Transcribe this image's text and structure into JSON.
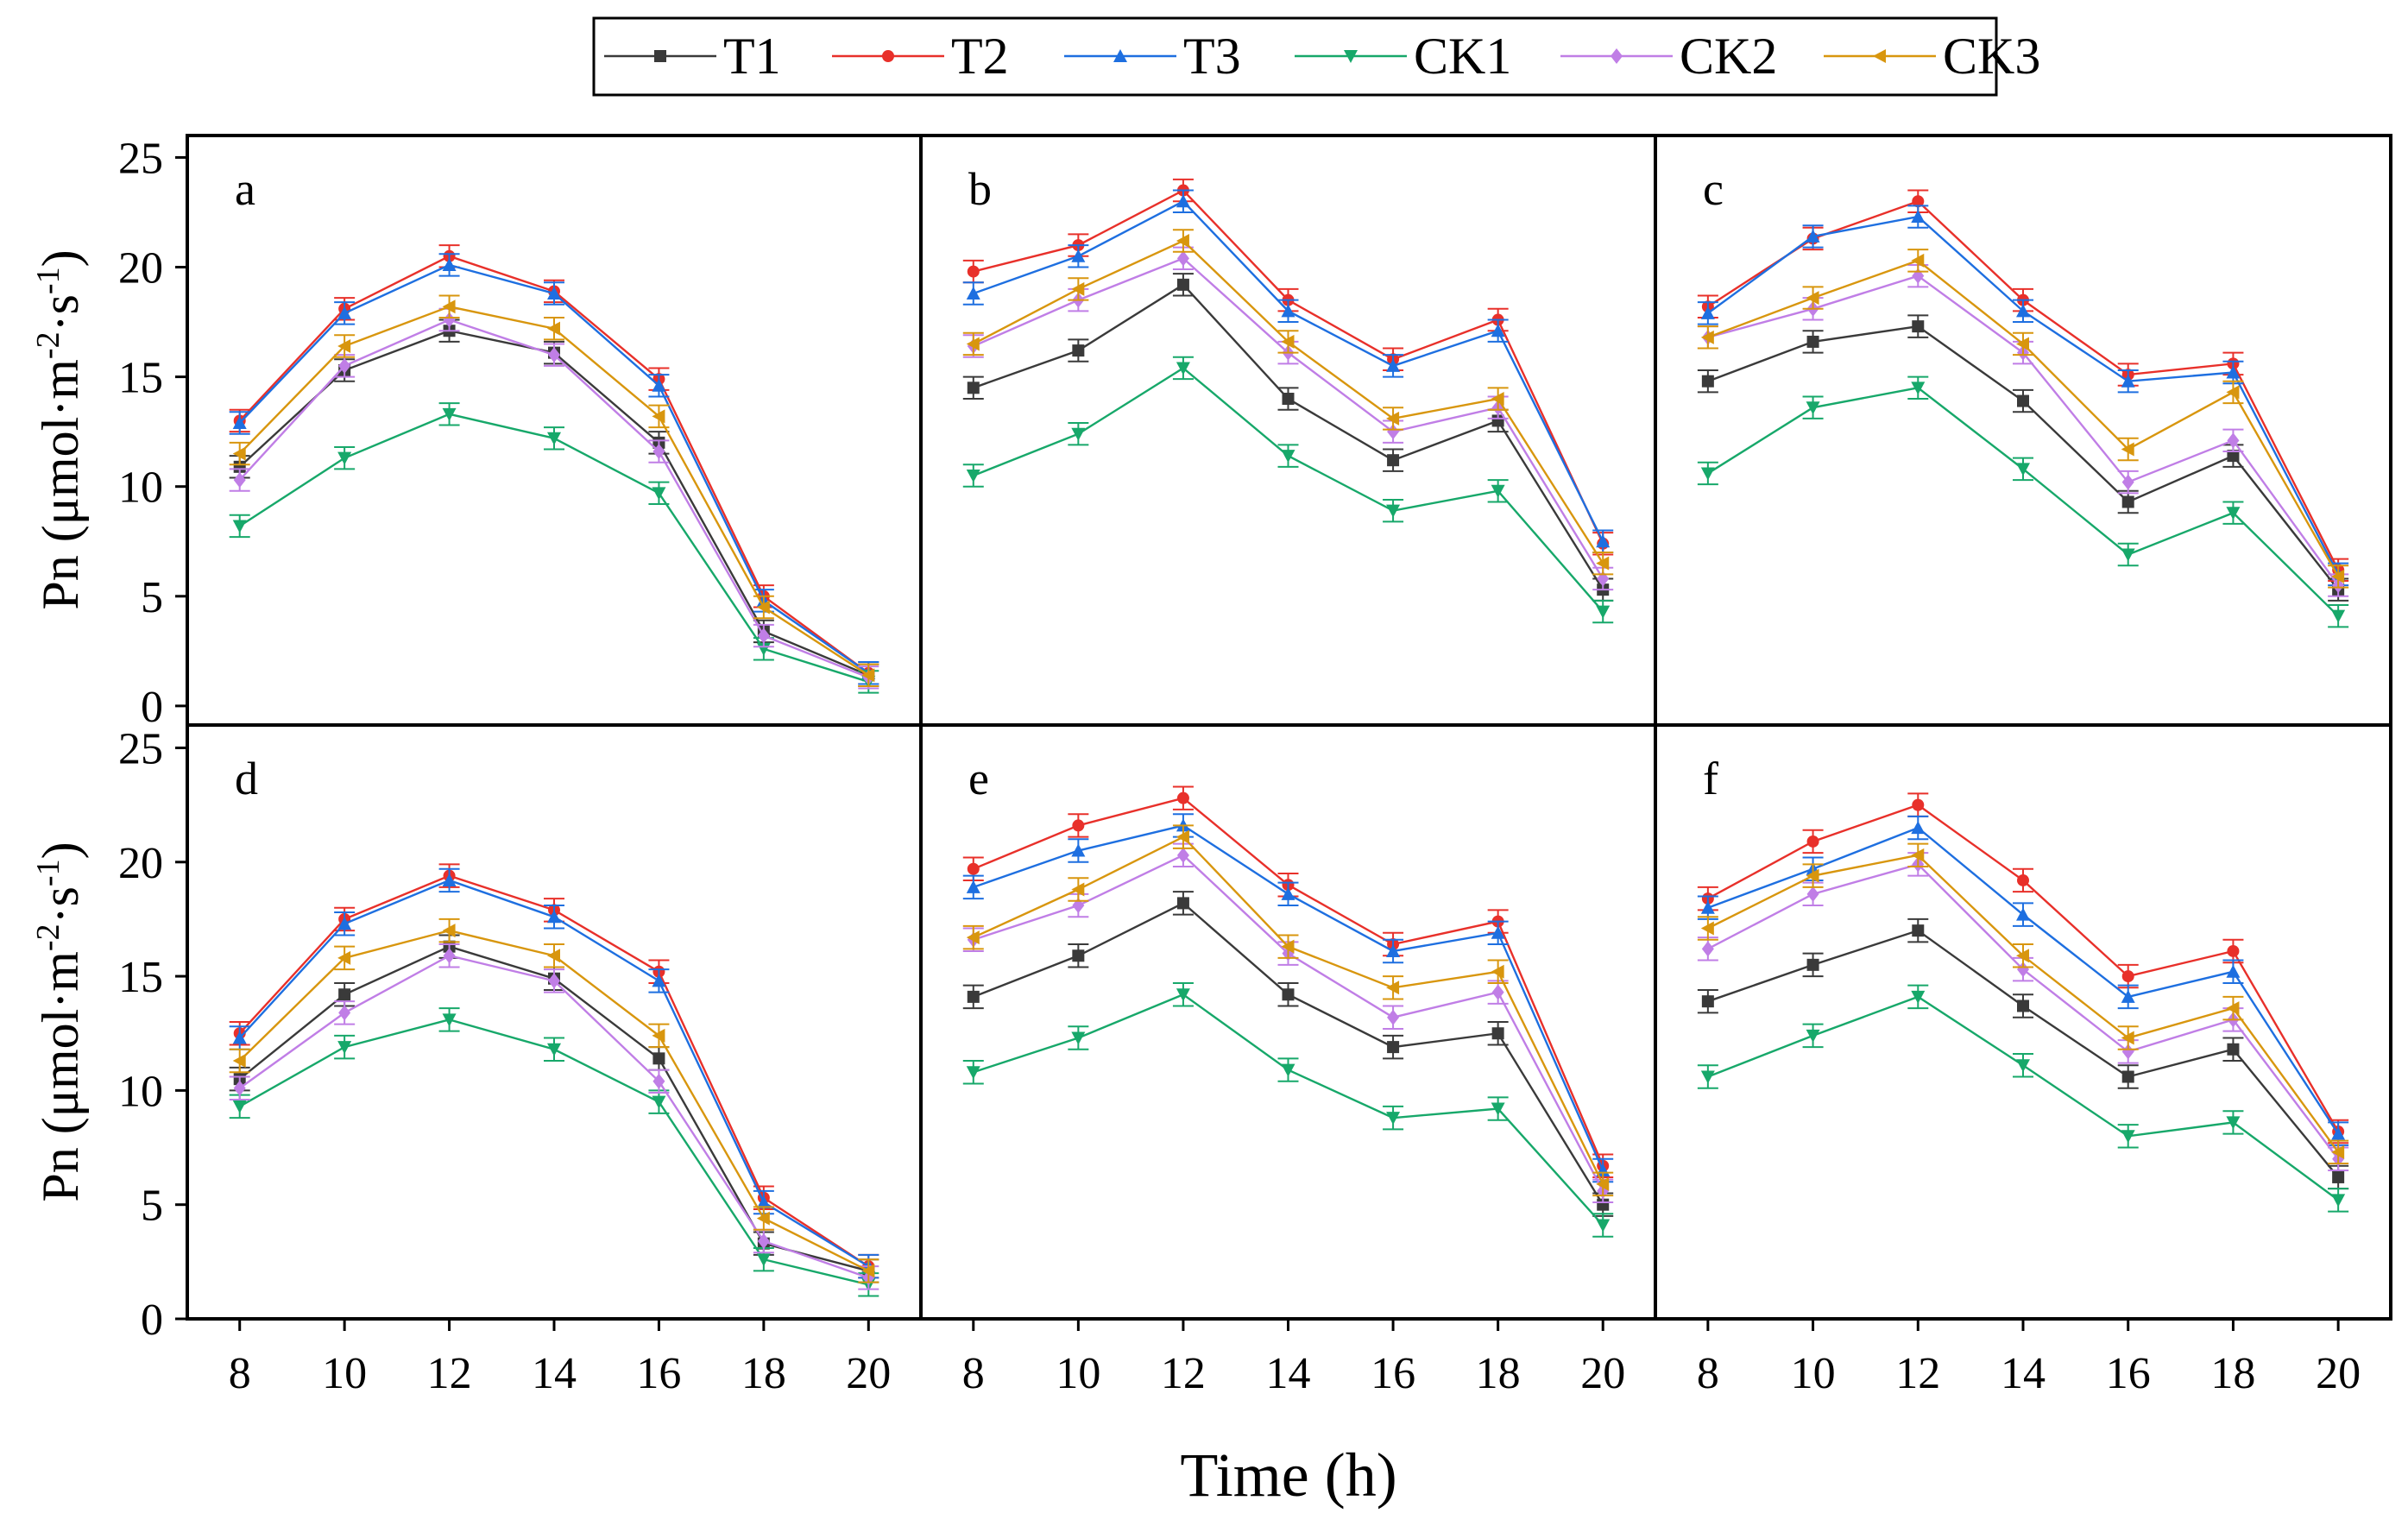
{
  "chart_data": {
    "type": "line",
    "xlabel": "Time (h)",
    "ylabel": "Pn (μmol·m-2·s-1)",
    "ylabel_parts": {
      "main": "Pn (μmol·m",
      "exp1": "-2",
      "mid": "·s",
      "exp2": "-1",
      "end": ")"
    },
    "x": [
      8,
      10,
      12,
      14,
      16,
      18,
      20
    ],
    "x_tick_labels": [
      "8",
      "10",
      "12",
      "14",
      "16",
      "18",
      "20"
    ],
    "y_ticks": [
      0,
      5,
      10,
      15,
      20,
      25
    ],
    "y_tick_labels": [
      "0",
      "5",
      "10",
      "15",
      "20",
      "25"
    ],
    "xlim": [
      7,
      21
    ],
    "ylim_top_row": [
      -0.87,
      26.0
    ],
    "ylim_bottom_row": [
      0,
      26.0
    ],
    "error_bar_approx": 0.5,
    "legend": {
      "placement": "top-center",
      "entries": [
        "T1",
        "T2",
        "T3",
        "CK1",
        "CK2",
        "CK3"
      ]
    },
    "series_styles": [
      {
        "name": "T1",
        "color": "#3a3a3a",
        "marker": "square"
      },
      {
        "name": "T2",
        "color": "#e8302a",
        "marker": "circle"
      },
      {
        "name": "T3",
        "color": "#1e6fe0",
        "marker": "triangle-up"
      },
      {
        "name": "CK1",
        "color": "#17a86a",
        "marker": "triangle-down"
      },
      {
        "name": "CK2",
        "color": "#c07ee6",
        "marker": "diamond"
      },
      {
        "name": "CK3",
        "color": "#d8960e",
        "marker": "triangle-left"
      }
    ],
    "panels": [
      {
        "label": "a",
        "series": [
          {
            "name": "T1",
            "values": [
              10.9,
              15.3,
              17.1,
              16.1,
              12.0,
              3.4,
              1.4
            ]
          },
          {
            "name": "T2",
            "values": [
              13.0,
              18.1,
              20.5,
              18.9,
              14.9,
              5.0,
              1.5
            ]
          },
          {
            "name": "T3",
            "values": [
              12.9,
              17.9,
              20.1,
              18.8,
              14.6,
              4.8,
              1.5
            ]
          },
          {
            "name": "CK1",
            "values": [
              8.2,
              11.3,
              13.3,
              12.2,
              9.7,
              2.6,
              1.1
            ]
          },
          {
            "name": "CK2",
            "values": [
              10.3,
              15.5,
              17.6,
              16.0,
              11.6,
              3.2,
              1.3
            ]
          },
          {
            "name": "CK3",
            "values": [
              11.5,
              16.4,
              18.2,
              17.2,
              13.2,
              4.5,
              1.4
            ]
          }
        ]
      },
      {
        "label": "b",
        "series": [
          {
            "name": "T1",
            "values": [
              14.5,
              16.2,
              19.2,
              14.0,
              11.2,
              13.0,
              5.3
            ]
          },
          {
            "name": "T2",
            "values": [
              19.8,
              21.0,
              23.5,
              18.5,
              15.8,
              17.6,
              7.4
            ]
          },
          {
            "name": "T3",
            "values": [
              18.8,
              20.5,
              23.0,
              18.0,
              15.5,
              17.1,
              7.5
            ]
          },
          {
            "name": "CK1",
            "values": [
              10.5,
              12.4,
              15.4,
              11.4,
              8.9,
              9.8,
              4.3
            ]
          },
          {
            "name": "CK2",
            "values": [
              16.4,
              18.5,
              20.4,
              16.1,
              12.5,
              13.6,
              5.8
            ]
          },
          {
            "name": "CK3",
            "values": [
              16.5,
              19.0,
              21.2,
              16.6,
              13.1,
              14.0,
              6.5
            ]
          }
        ]
      },
      {
        "label": "c",
        "series": [
          {
            "name": "T1",
            "values": [
              14.8,
              16.6,
              17.3,
              13.9,
              9.3,
              11.4,
              5.3
            ]
          },
          {
            "name": "T2",
            "values": [
              18.2,
              21.3,
              23.0,
              18.5,
              15.1,
              15.6,
              6.2
            ]
          },
          {
            "name": "T3",
            "values": [
              17.9,
              21.4,
              22.3,
              18.0,
              14.8,
              15.2,
              6.0
            ]
          },
          {
            "name": "CK1",
            "values": [
              10.6,
              13.6,
              14.5,
              10.8,
              6.9,
              8.8,
              4.1
            ]
          },
          {
            "name": "CK2",
            "values": [
              16.8,
              18.1,
              19.6,
              16.1,
              10.2,
              12.1,
              5.5
            ]
          },
          {
            "name": "CK3",
            "values": [
              16.8,
              18.6,
              20.3,
              16.5,
              11.7,
              14.3,
              5.9
            ]
          }
        ]
      },
      {
        "label": "d",
        "series": [
          {
            "name": "T1",
            "values": [
              10.5,
              14.2,
              16.3,
              14.9,
              11.4,
              3.3,
              2.1
            ]
          },
          {
            "name": "T2",
            "values": [
              12.5,
              17.5,
              19.4,
              17.9,
              15.2,
              5.3,
              2.3
            ]
          },
          {
            "name": "T3",
            "values": [
              12.3,
              17.3,
              19.2,
              17.6,
              14.8,
              5.1,
              2.3
            ]
          },
          {
            "name": "CK1",
            "values": [
              9.3,
              11.9,
              13.1,
              11.8,
              9.5,
              2.6,
              1.5
            ]
          },
          {
            "name": "CK2",
            "values": [
              10.1,
              13.4,
              15.9,
              14.8,
              10.4,
              3.4,
              1.8
            ]
          },
          {
            "name": "CK3",
            "values": [
              11.3,
              15.8,
              17.0,
              15.9,
              12.4,
              4.4,
              2.1
            ]
          }
        ]
      },
      {
        "label": "e",
        "series": [
          {
            "name": "T1",
            "values": [
              14.1,
              15.9,
              18.2,
              14.2,
              11.9,
              12.5,
              5.0
            ]
          },
          {
            "name": "T2",
            "values": [
              19.7,
              21.6,
              22.8,
              19.0,
              16.4,
              17.4,
              6.7
            ]
          },
          {
            "name": "T3",
            "values": [
              18.9,
              20.5,
              21.6,
              18.6,
              16.1,
              16.9,
              6.5
            ]
          },
          {
            "name": "CK1",
            "values": [
              10.8,
              12.3,
              14.2,
              10.9,
              8.8,
              9.2,
              4.1
            ]
          },
          {
            "name": "CK2",
            "values": [
              16.6,
              18.1,
              20.3,
              16.0,
              13.2,
              14.3,
              5.6
            ]
          },
          {
            "name": "CK3",
            "values": [
              16.7,
              18.8,
              21.1,
              16.3,
              14.5,
              15.2,
              5.9
            ]
          }
        ]
      },
      {
        "label": "f",
        "series": [
          {
            "name": "T1",
            "values": [
              13.9,
              15.5,
              17.0,
              13.7,
              10.6,
              11.8,
              6.2
            ]
          },
          {
            "name": "T2",
            "values": [
              18.4,
              20.9,
              22.5,
              19.2,
              15.0,
              16.1,
              8.2
            ]
          },
          {
            "name": "T3",
            "values": [
              18.0,
              19.7,
              21.5,
              17.7,
              14.1,
              15.2,
              8.1
            ]
          },
          {
            "name": "CK1",
            "values": [
              10.6,
              12.4,
              14.1,
              11.1,
              8.0,
              8.6,
              5.2
            ]
          },
          {
            "name": "CK2",
            "values": [
              16.2,
              18.6,
              19.9,
              15.3,
              11.7,
              13.1,
              7.0
            ]
          },
          {
            "name": "CK3",
            "values": [
              17.1,
              19.4,
              20.3,
              15.9,
              12.3,
              13.6,
              7.3
            ]
          }
        ]
      }
    ]
  }
}
